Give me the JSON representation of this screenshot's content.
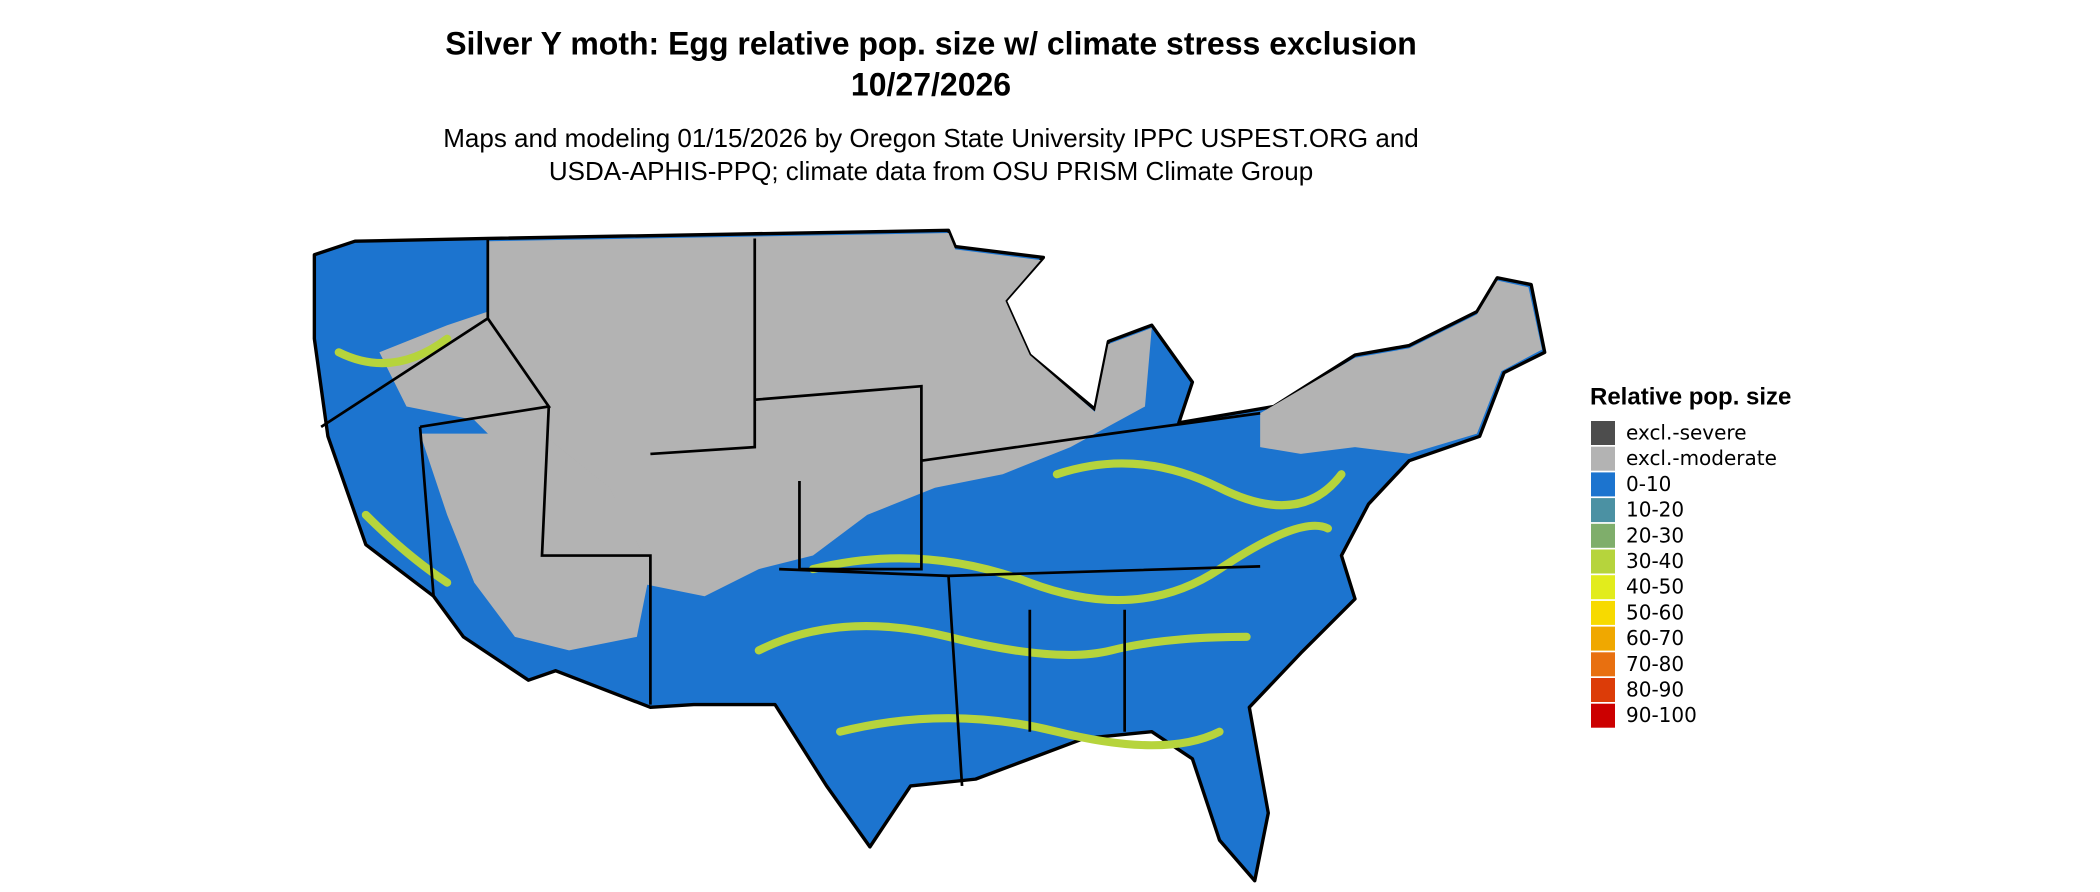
{
  "header": {
    "title": "Silver Y moth: Egg relative pop. size w/ climate stress exclusion",
    "date": "10/27/2026",
    "subtitle_lines": [
      "Maps and modeling 01/15/2026 by Oregon State University IPPC USPEST.ORG and",
      "USDA-APHIS-PPQ; climate data from OSU PRISM Climate Group"
    ]
  },
  "legend": {
    "title": "Relative pop. size",
    "items": [
      {
        "label": "excl.-severe",
        "color": "#4d4d4d"
      },
      {
        "label": "excl.-moderate",
        "color": "#b3b3b3"
      },
      {
        "label": "0-10",
        "color": "#1c74cf"
      },
      {
        "label": "10-20",
        "color": "#4b91a3"
      },
      {
        "label": "20-30",
        "color": "#7fae6b"
      },
      {
        "label": "30-40",
        "color": "#b6d43c"
      },
      {
        "label": "40-50",
        "color": "#e2ec1c"
      },
      {
        "label": "50-60",
        "color": "#f7da00"
      },
      {
        "label": "60-70",
        "color": "#f0a800"
      },
      {
        "label": "70-80",
        "color": "#e87010"
      },
      {
        "label": "80-90",
        "color": "#dc3c08"
      },
      {
        "label": "90-100",
        "color": "#cc0000"
      }
    ]
  }
}
